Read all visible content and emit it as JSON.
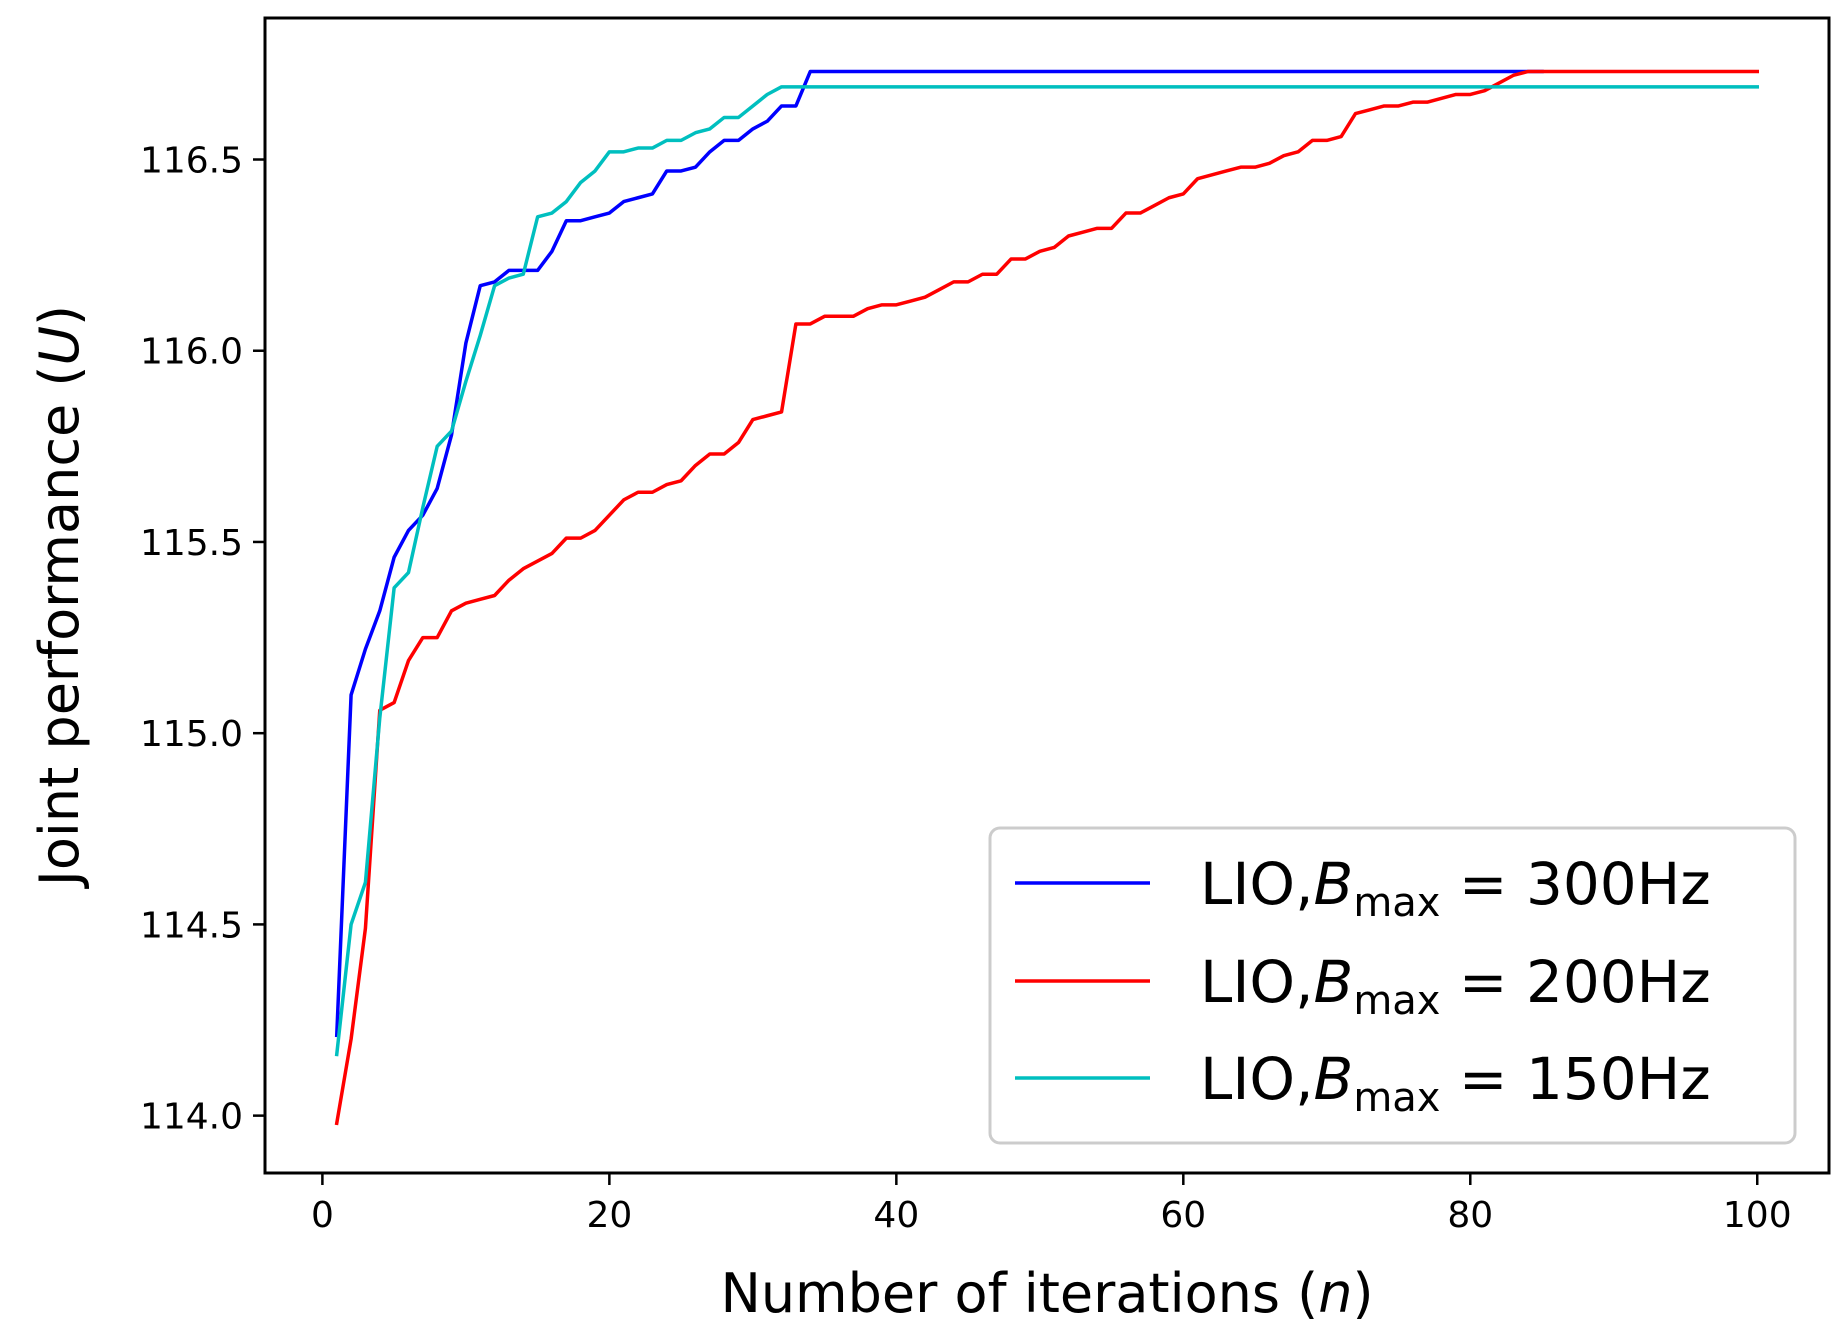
{
  "chart_data": {
    "type": "line",
    "title": "",
    "xlabel": "Number of iterations (n)",
    "xlabel_parts": {
      "pre": "Number of iterations (",
      "var": "n",
      "post": ")"
    },
    "ylabel": "Joint performance (U)",
    "ylabel_parts": {
      "pre": "Joint performance (",
      "var": "U",
      "post": ")"
    },
    "xlim": [
      -4,
      105
    ],
    "ylim": [
      113.85,
      116.87
    ],
    "xticks": [
      0,
      20,
      40,
      60,
      80,
      100
    ],
    "xtick_labels": [
      "0",
      "20",
      "40",
      "60",
      "80",
      "100"
    ],
    "yticks": [
      114.0,
      114.5,
      115.0,
      115.5,
      116.0,
      116.5
    ],
    "ytick_labels": [
      "114.0",
      "114.5",
      "115.0",
      "115.5",
      "116.0",
      "116.5"
    ],
    "grid": false,
    "legend_position": "lower-right",
    "series": [
      {
        "name": "LIO,B_max = 300Hz",
        "legend": {
          "prefix": "LIO,",
          "var": "B",
          "sub": "max",
          "suffix": " = 300Hz"
        },
        "color": "#0000ff",
        "points": [
          [
            1,
            114.21
          ],
          [
            2,
            115.1
          ],
          [
            3,
            115.22
          ],
          [
            4,
            115.32
          ],
          [
            5,
            115.46
          ],
          [
            6,
            115.53
          ],
          [
            7,
            115.57
          ],
          [
            8,
            115.64
          ],
          [
            9,
            115.78
          ],
          [
            10,
            116.02
          ],
          [
            11,
            116.17
          ],
          [
            12,
            116.18
          ],
          [
            13,
            116.21
          ],
          [
            14,
            116.21
          ],
          [
            15,
            116.21
          ],
          [
            16,
            116.26
          ],
          [
            17,
            116.34
          ],
          [
            18,
            116.34
          ],
          [
            19,
            116.35
          ],
          [
            20,
            116.36
          ],
          [
            21,
            116.39
          ],
          [
            22,
            116.4
          ],
          [
            23,
            116.41
          ],
          [
            24,
            116.47
          ],
          [
            25,
            116.47
          ],
          [
            26,
            116.48
          ],
          [
            27,
            116.52
          ],
          [
            28,
            116.55
          ],
          [
            29,
            116.55
          ],
          [
            30,
            116.58
          ],
          [
            31,
            116.6
          ],
          [
            32,
            116.64
          ],
          [
            33,
            116.64
          ],
          [
            34,
            116.73
          ],
          [
            85,
            116.73
          ]
        ]
      },
      {
        "name": "LIO,B_max = 200Hz",
        "legend": {
          "prefix": "LIO,",
          "var": "B",
          "sub": "max",
          "suffix": " = 200Hz"
        },
        "color": "#ff0000",
        "points": [
          [
            1,
            113.98
          ],
          [
            2,
            114.2
          ],
          [
            3,
            114.49
          ],
          [
            4,
            115.06
          ],
          [
            5,
            115.08
          ],
          [
            6,
            115.19
          ],
          [
            7,
            115.25
          ],
          [
            8,
            115.25
          ],
          [
            9,
            115.32
          ],
          [
            10,
            115.34
          ],
          [
            11,
            115.35
          ],
          [
            12,
            115.36
          ],
          [
            13,
            115.4
          ],
          [
            14,
            115.43
          ],
          [
            15,
            115.45
          ],
          [
            16,
            115.47
          ],
          [
            17,
            115.51
          ],
          [
            18,
            115.51
          ],
          [
            19,
            115.53
          ],
          [
            20,
            115.57
          ],
          [
            21,
            115.61
          ],
          [
            22,
            115.63
          ],
          [
            23,
            115.63
          ],
          [
            24,
            115.65
          ],
          [
            25,
            115.66
          ],
          [
            26,
            115.7
          ],
          [
            27,
            115.73
          ],
          [
            28,
            115.73
          ],
          [
            29,
            115.76
          ],
          [
            30,
            115.82
          ],
          [
            31,
            115.83
          ],
          [
            32,
            115.84
          ],
          [
            33,
            116.07
          ],
          [
            34,
            116.07
          ],
          [
            35,
            116.09
          ],
          [
            36,
            116.09
          ],
          [
            37,
            116.09
          ],
          [
            38,
            116.11
          ],
          [
            39,
            116.12
          ],
          [
            40,
            116.12
          ],
          [
            41,
            116.13
          ],
          [
            42,
            116.14
          ],
          [
            43,
            116.16
          ],
          [
            44,
            116.18
          ],
          [
            45,
            116.18
          ],
          [
            46,
            116.2
          ],
          [
            47,
            116.2
          ],
          [
            48,
            116.24
          ],
          [
            49,
            116.24
          ],
          [
            50,
            116.26
          ],
          [
            51,
            116.27
          ],
          [
            52,
            116.3
          ],
          [
            53,
            116.31
          ],
          [
            54,
            116.32
          ],
          [
            55,
            116.32
          ],
          [
            56,
            116.36
          ],
          [
            57,
            116.36
          ],
          [
            58,
            116.38
          ],
          [
            59,
            116.4
          ],
          [
            60,
            116.41
          ],
          [
            61,
            116.45
          ],
          [
            62,
            116.46
          ],
          [
            63,
            116.47
          ],
          [
            64,
            116.48
          ],
          [
            65,
            116.48
          ],
          [
            66,
            116.49
          ],
          [
            67,
            116.51
          ],
          [
            68,
            116.52
          ],
          [
            69,
            116.55
          ],
          [
            70,
            116.55
          ],
          [
            71,
            116.56
          ],
          [
            72,
            116.62
          ],
          [
            73,
            116.63
          ],
          [
            74,
            116.64
          ],
          [
            75,
            116.64
          ],
          [
            76,
            116.65
          ],
          [
            77,
            116.65
          ],
          [
            78,
            116.66
          ],
          [
            79,
            116.67
          ],
          [
            80,
            116.67
          ],
          [
            81,
            116.68
          ],
          [
            82,
            116.7
          ],
          [
            83,
            116.72
          ],
          [
            84,
            116.73
          ],
          [
            100,
            116.73
          ]
        ]
      },
      {
        "name": "LIO,B_max = 150Hz",
        "legend": {
          "prefix": "LIO,",
          "var": "B",
          "sub": "max",
          "suffix": " = 150Hz"
        },
        "color": "#00bfbf",
        "points": [
          [
            1,
            114.16
          ],
          [
            2,
            114.5
          ],
          [
            3,
            114.61
          ],
          [
            4,
            115.04
          ],
          [
            5,
            115.38
          ],
          [
            6,
            115.42
          ],
          [
            7,
            115.59
          ],
          [
            8,
            115.75
          ],
          [
            9,
            115.79
          ],
          [
            10,
            115.92
          ],
          [
            11,
            116.04
          ],
          [
            12,
            116.17
          ],
          [
            13,
            116.19
          ],
          [
            14,
            116.2
          ],
          [
            15,
            116.35
          ],
          [
            16,
            116.36
          ],
          [
            17,
            116.39
          ],
          [
            18,
            116.44
          ],
          [
            19,
            116.47
          ],
          [
            20,
            116.52
          ],
          [
            21,
            116.52
          ],
          [
            22,
            116.53
          ],
          [
            23,
            116.53
          ],
          [
            24,
            116.55
          ],
          [
            25,
            116.55
          ],
          [
            26,
            116.57
          ],
          [
            27,
            116.58
          ],
          [
            28,
            116.61
          ],
          [
            29,
            116.61
          ],
          [
            30,
            116.64
          ],
          [
            31,
            116.67
          ],
          [
            32,
            116.69
          ],
          [
            100,
            116.69
          ]
        ]
      }
    ]
  }
}
